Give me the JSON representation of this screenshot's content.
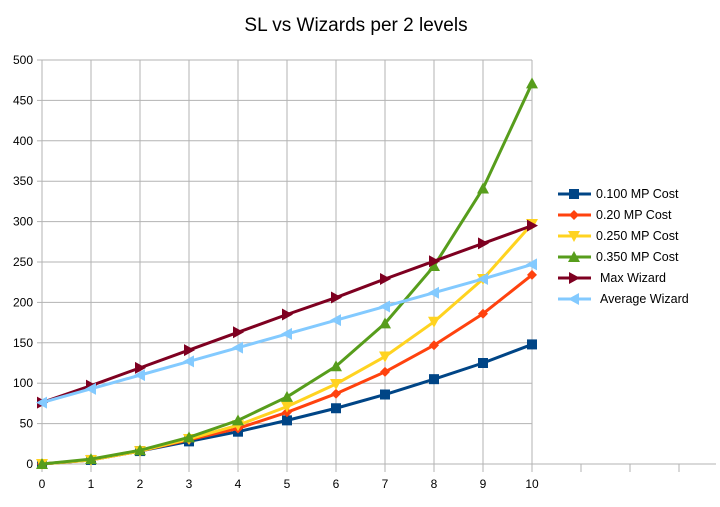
{
  "chart_data": {
    "type": "line",
    "title": "SL vs Wizards per 2 levels",
    "xlabel": "",
    "ylabel": "",
    "x": [
      0,
      1,
      2,
      3,
      4,
      5,
      6,
      7,
      8,
      9,
      10
    ],
    "xlim": [
      0,
      10
    ],
    "ylim": [
      0,
      500
    ],
    "yticks": [
      0,
      50,
      100,
      150,
      200,
      250,
      300,
      350,
      400,
      450,
      500
    ],
    "grid": true,
    "legend_position": "right",
    "series": [
      {
        "name": "0.100 MP Cost",
        "color": "#004586",
        "marker": "square",
        "values": [
          0,
          5,
          16,
          28,
          40,
          54,
          69,
          86,
          105,
          125,
          148
        ]
      },
      {
        "name": "0.20 MP Cost",
        "color": "#ff420e",
        "marker": "diamond",
        "values": [
          0,
          5,
          16,
          30,
          44,
          64,
          87,
          114,
          147,
          186,
          234
        ]
      },
      {
        "name": "0.250 MP Cost",
        "color": "#ffd320",
        "marker": "triangle-down",
        "values": [
          0,
          5,
          16,
          31,
          48,
          71,
          99,
          133,
          176,
          229,
          297
        ]
      },
      {
        "name": "0.350 MP Cost",
        "color": "#579d1c",
        "marker": "triangle-up",
        "values": [
          0,
          6,
          17,
          33,
          54,
          83,
          121,
          174,
          245,
          341,
          471
        ]
      },
      {
        "name": "Max Wizard",
        "color": "#7e0021",
        "marker": "triangle-right",
        "values": [
          76,
          97,
          119,
          141,
          163,
          185,
          206,
          229,
          251,
          273,
          295
        ]
      },
      {
        "name": "Average Wizard",
        "color": "#83caff",
        "marker": "triangle-left",
        "values": [
          76,
          93,
          110,
          127,
          144,
          161,
          178,
          195,
          212,
          229,
          247
        ]
      }
    ]
  }
}
